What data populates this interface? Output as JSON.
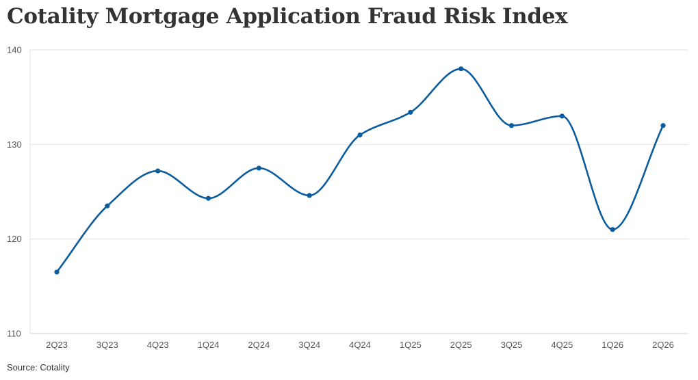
{
  "title": "Cotality Mortgage Application Fraud Risk Index",
  "source": "Source: Cotality",
  "colors": {
    "line": "#0b5c9e",
    "grid": "#e6e6e6",
    "axis": "#cfcfcf",
    "text": "#333333"
  },
  "chart_data": {
    "type": "line",
    "title": "Cotality Mortgage Application Fraud Risk Index",
    "xlabel": "",
    "ylabel": "",
    "categories": [
      "2Q23",
      "3Q23",
      "4Q23",
      "1Q24",
      "2Q24",
      "3Q24",
      "4Q24",
      "1Q25",
      "2Q25",
      "3Q25",
      "4Q25",
      "1Q26",
      "2Q26"
    ],
    "series": [
      {
        "values": [
          116.5,
          123.5,
          127.2,
          124.3,
          127.5,
          124.6,
          131.0,
          133.4,
          138.0,
          132.0,
          133.0,
          121.0,
          132.0
        ]
      }
    ],
    "ylim": [
      110,
      140
    ],
    "yticks": [
      110,
      120,
      130,
      140
    ],
    "grid": true,
    "legend": "none"
  }
}
